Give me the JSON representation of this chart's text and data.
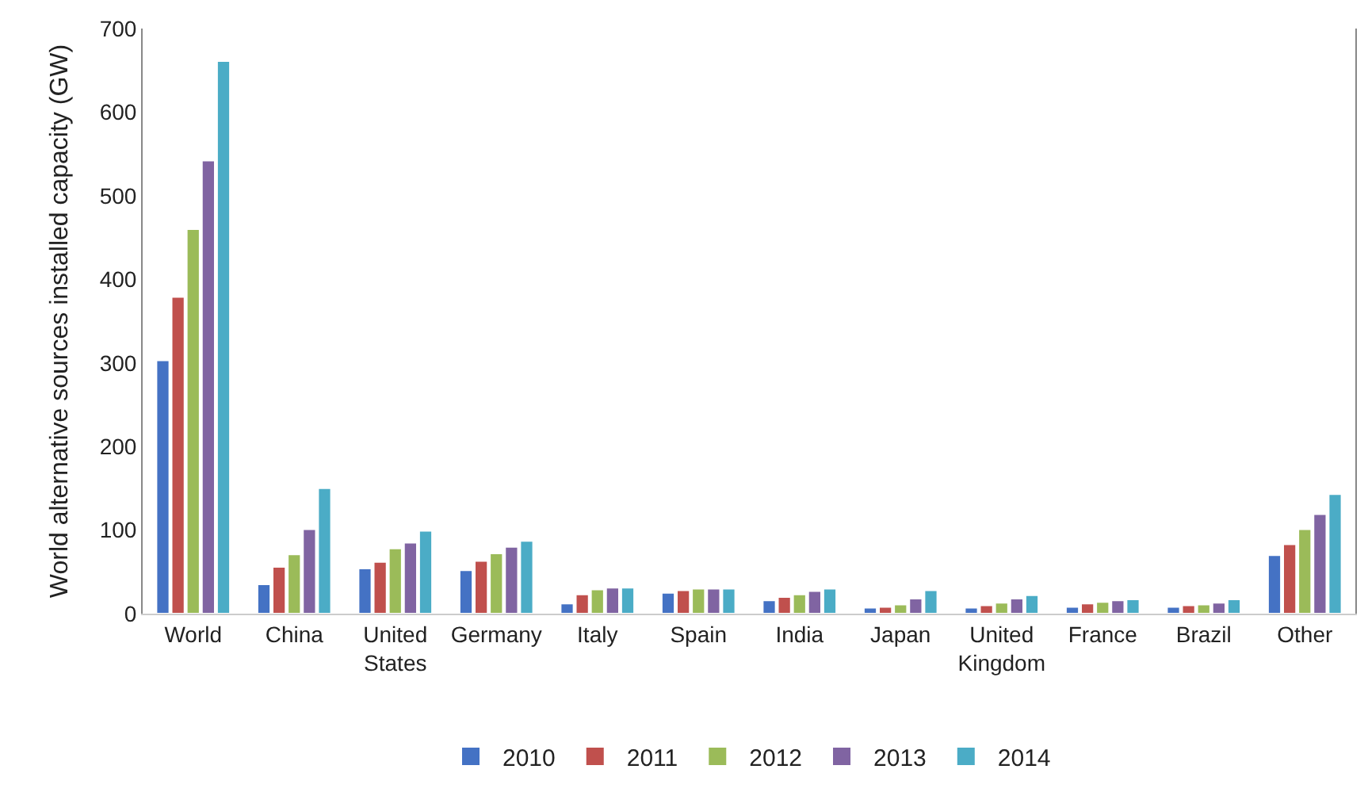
{
  "chart_data": {
    "type": "bar",
    "ylabel": "World alternative sources installed capacity (GW)",
    "categories": [
      "World",
      "China",
      "United\nStates",
      "Germany",
      "Italy",
      "Spain",
      "India",
      "Japan",
      "United\nKingdom",
      "France",
      "Brazil",
      "Other"
    ],
    "series": [
      {
        "name": "2010",
        "color": "#4472c4",
        "values": [
          303,
          35,
          54,
          52,
          12,
          25,
          16,
          7,
          7,
          8,
          8,
          70
        ]
      },
      {
        "name": "2011",
        "color": "#c0504d",
        "values": [
          379,
          56,
          62,
          63,
          23,
          28,
          20,
          8,
          10,
          12,
          10,
          83
        ]
      },
      {
        "name": "2012",
        "color": "#9bbb59",
        "values": [
          460,
          71,
          78,
          72,
          29,
          30,
          23,
          11,
          13,
          14,
          11,
          101
        ]
      },
      {
        "name": "2013",
        "color": "#8064a2",
        "values": [
          542,
          101,
          85,
          80,
          31,
          30,
          27,
          18,
          18,
          16,
          13,
          119
        ]
      },
      {
        "name": "2014",
        "color": "#4bacc6",
        "values": [
          661,
          150,
          99,
          87,
          31,
          30,
          30,
          28,
          22,
          17,
          17,
          143
        ]
      }
    ],
    "ylim": [
      0,
      700
    ],
    "yticks": [
      0,
      100,
      200,
      300,
      400,
      500,
      600,
      700
    ],
    "legend": "bottom"
  }
}
